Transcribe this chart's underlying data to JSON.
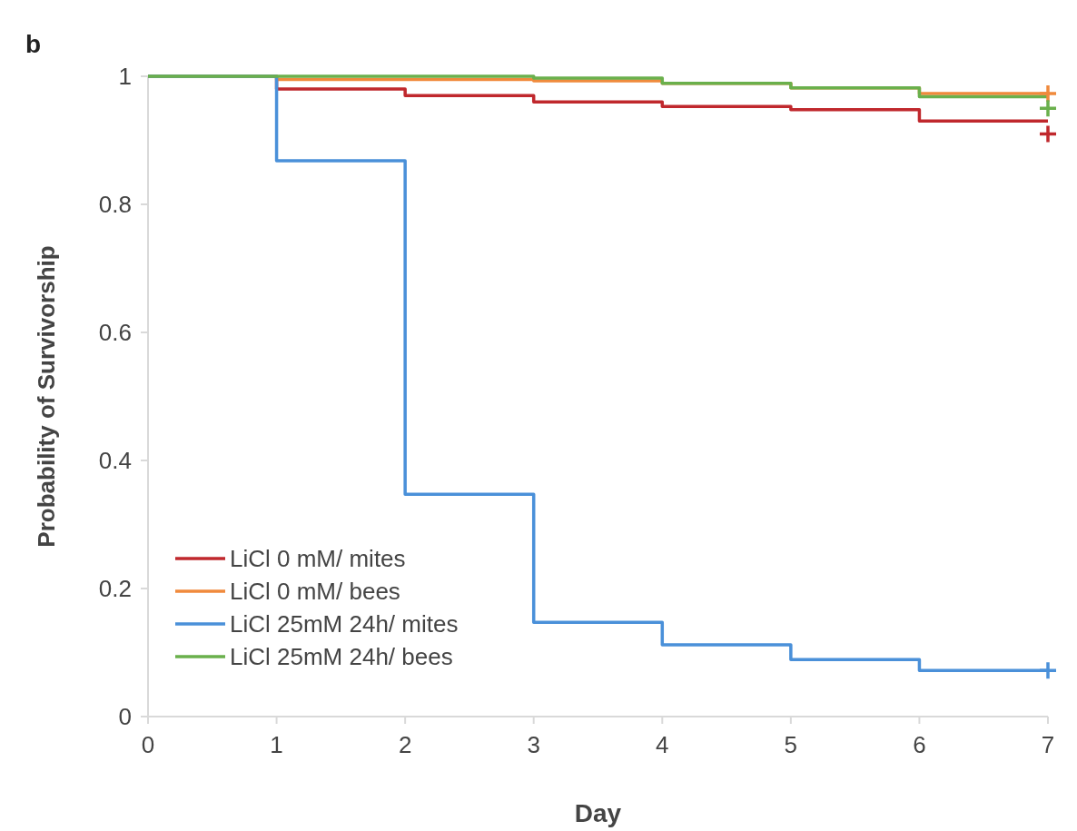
{
  "chart_data": {
    "type": "step",
    "title": "b",
    "xlabel": "Day",
    "ylabel": "Probability of Survivorship",
    "x": [
      0,
      1,
      2,
      3,
      4,
      5,
      6,
      7
    ],
    "series": [
      {
        "name": "LiCl 0 mM/ mites",
        "color": "#c0282d",
        "values": [
          1,
          0.98,
          0.97,
          0.96,
          0.953,
          0.948,
          0.93,
          0.93
        ]
      },
      {
        "name": "LiCl 0 mM/ bees",
        "color": "#f08a3c",
        "values": [
          1,
          0.995,
          0.995,
          0.993,
          0.989,
          0.982,
          0.973,
          0.973
        ]
      },
      {
        "name": "LiCl 25mM 24h/ mites",
        "color": "#4a90d9",
        "values": [
          1,
          0.868,
          0.347,
          0.147,
          0.112,
          0.089,
          0.072,
          0.072
        ]
      },
      {
        "name": "LiCl 25mM 24h/ bees",
        "color": "#6ab04c",
        "values": [
          1,
          1,
          1,
          0.997,
          0.989,
          0.982,
          0.968,
          0.968
        ]
      },
      {
        "type": "scatter",
        "marker": "cross",
        "color": "#c0282d",
        "values": [
          null,
          null,
          null,
          null,
          null,
          null,
          null,
          0.91
        ]
      },
      {
        "type": "scatter",
        "marker": "cross",
        "color": "#f08a3c",
        "values": [
          null,
          null,
          null,
          null,
          null,
          null,
          null,
          0.973
        ]
      },
      {
        "type": "scatter",
        "marker": "cross",
        "color": "#4a90d9",
        "values": [
          null,
          null,
          null,
          null,
          null,
          null,
          null,
          0.072
        ]
      },
      {
        "type": "scatter",
        "marker": "cross",
        "color": "#6ab04c",
        "values": [
          null,
          null,
          null,
          null,
          null,
          null,
          null,
          0.95
        ]
      }
    ],
    "xlim": [
      0,
      7
    ],
    "xticks": [
      0,
      1,
      2,
      3,
      4,
      5,
      6,
      7
    ],
    "ylim": [
      0,
      1
    ],
    "yticks": [
      0,
      0.2,
      0.4,
      0.6,
      0.8,
      1
    ],
    "legend": "bottom left",
    "grid": false
  }
}
